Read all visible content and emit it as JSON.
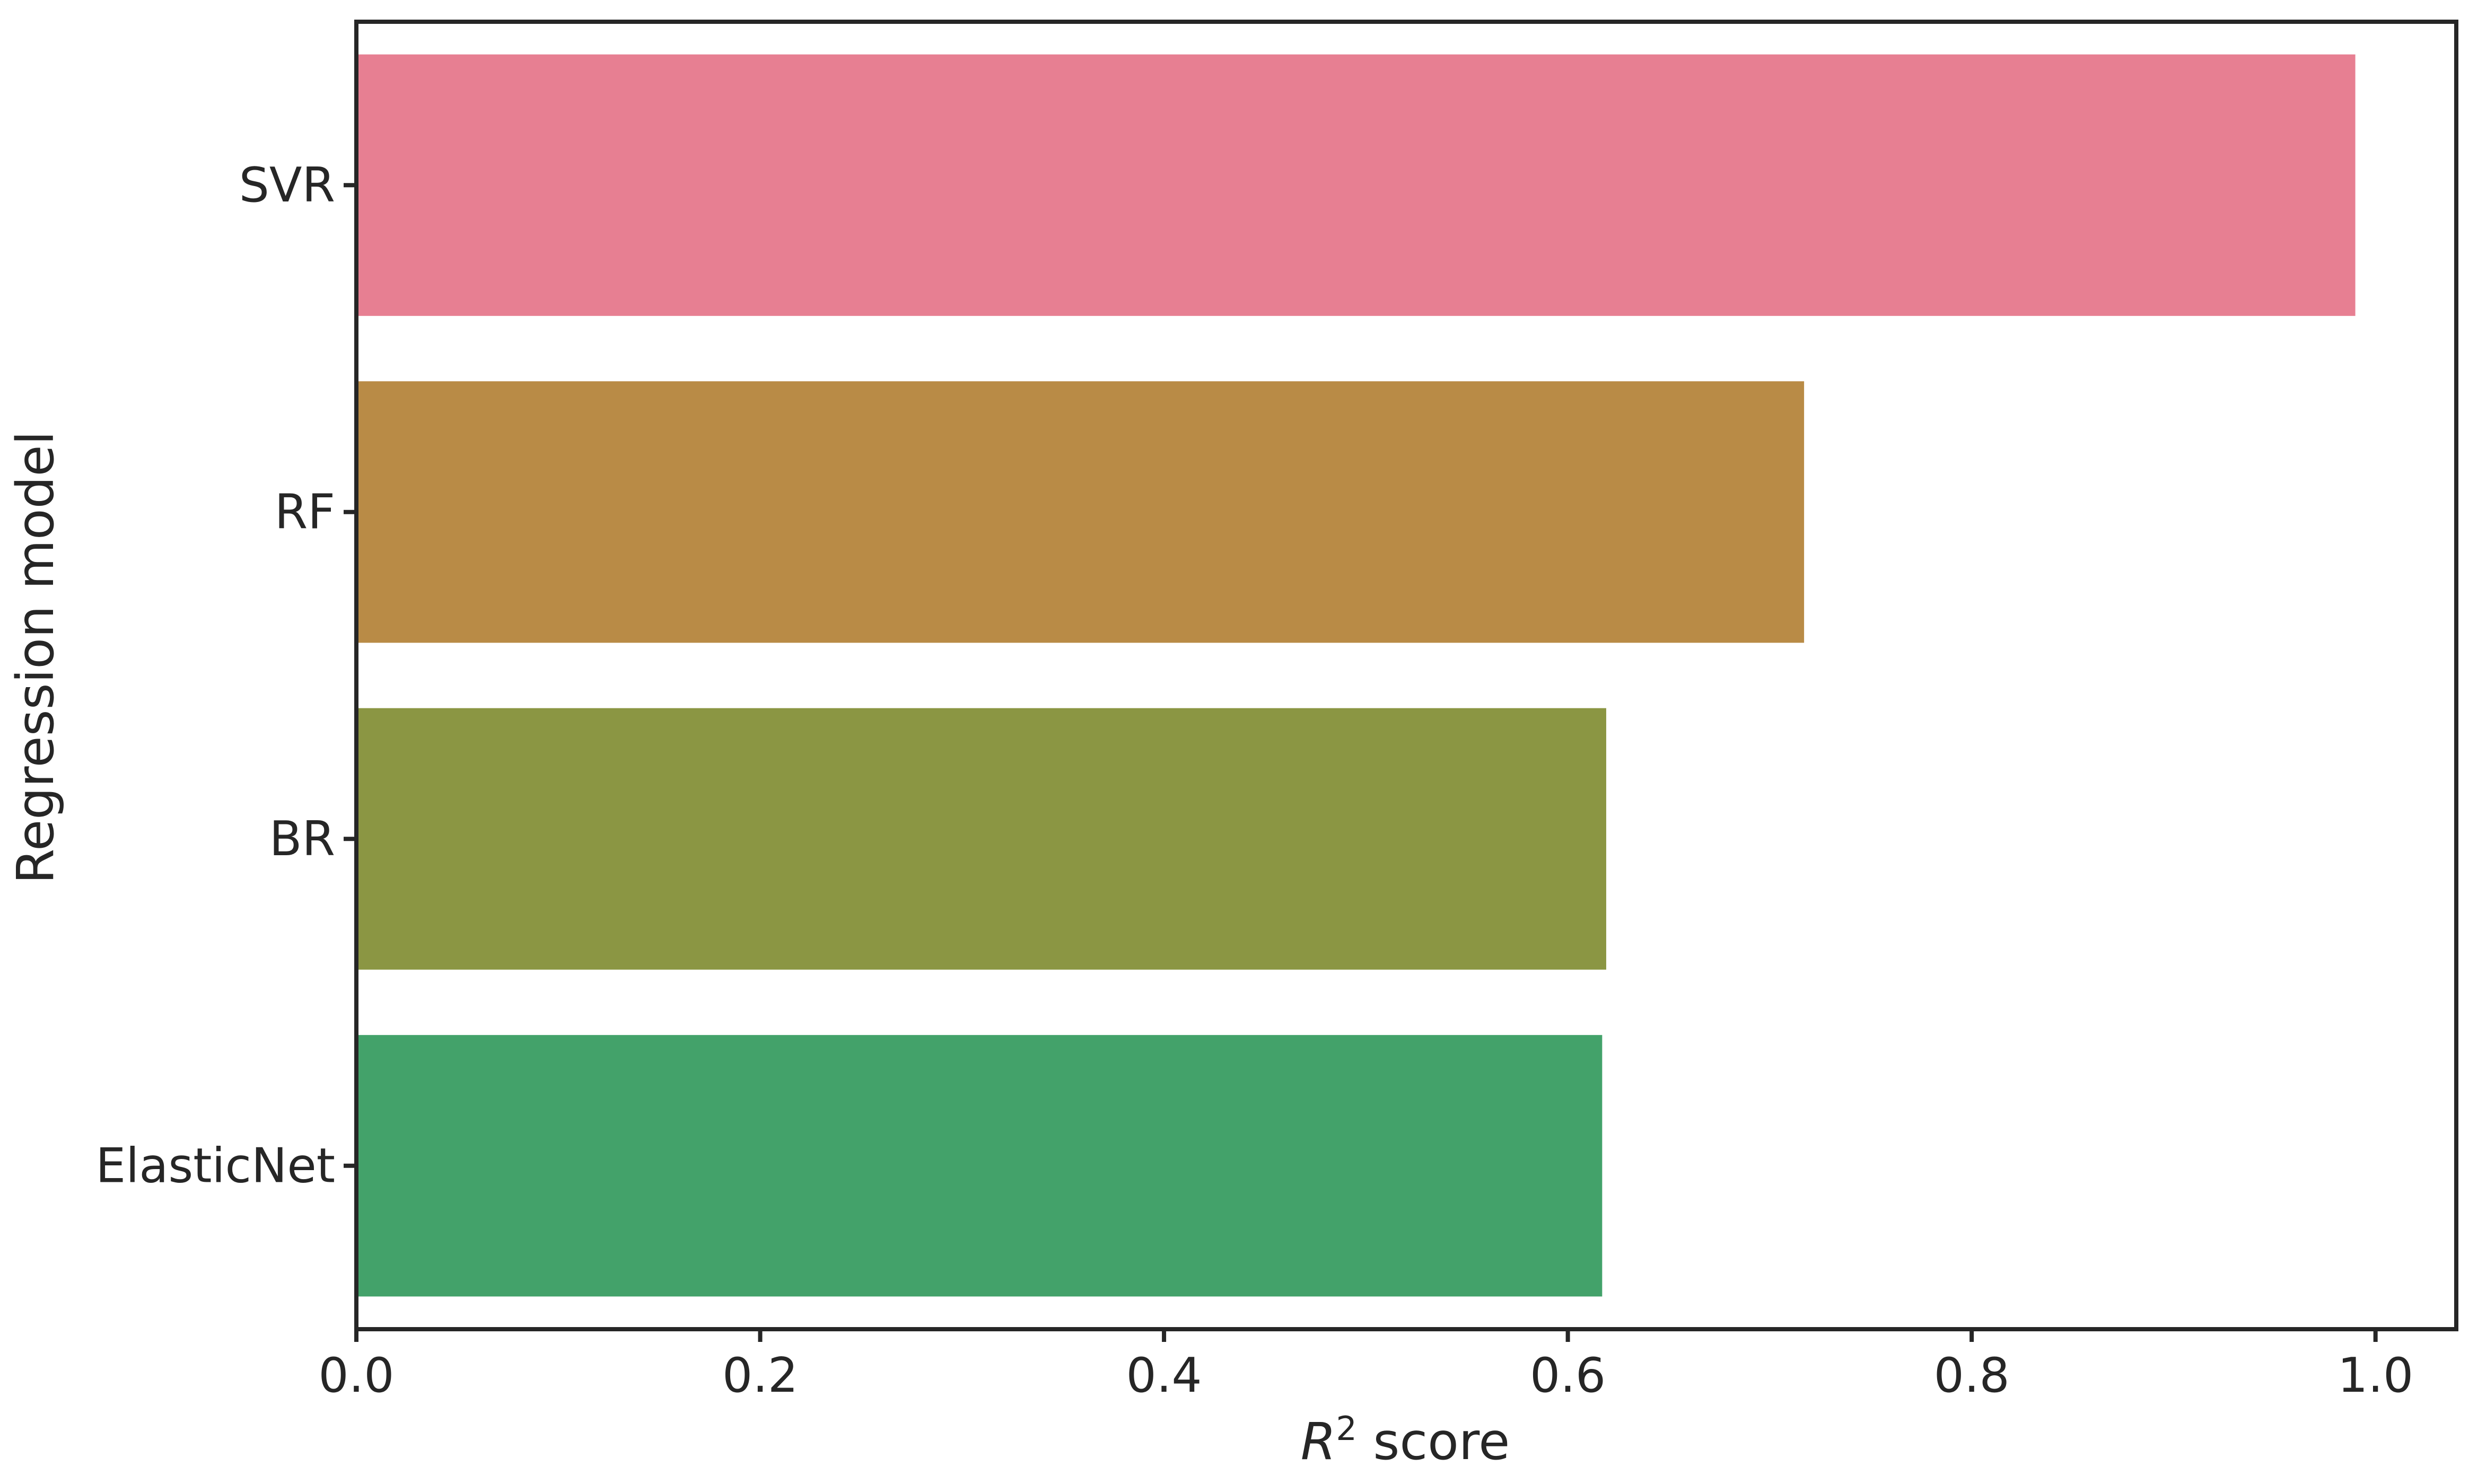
{
  "chart_data": {
    "type": "bar",
    "orientation": "horizontal",
    "categories": [
      "SVR",
      "RF",
      "BR",
      "ElasticNet"
    ],
    "values": [
      0.99,
      0.717,
      0.619,
      0.617
    ],
    "colors": [
      "#e77f92",
      "#b98b46",
      "#8b9643",
      "#43a26a"
    ],
    "xlabel_var": "R",
    "xlabel_sup": "2",
    "xlabel_rest": " score",
    "ylabel": "Regression model",
    "xlim": [
      0,
      1.04
    ],
    "xticks": [
      0.0,
      0.2,
      0.4,
      0.6,
      0.8,
      1.0
    ],
    "xtick_labels": [
      "0.0",
      "0.2",
      "0.4",
      "0.6",
      "0.8",
      "1.0"
    ],
    "grid": false,
    "axis_color": "#262626"
  }
}
